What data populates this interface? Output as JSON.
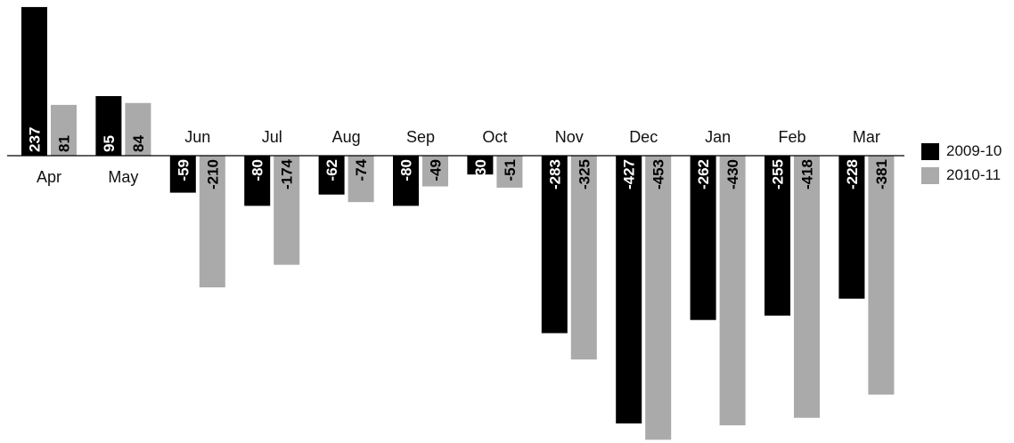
{
  "chart_data": {
    "type": "bar",
    "categories": [
      "Apr",
      "May",
      "Jun",
      "Jul",
      "Aug",
      "Sep",
      "Oct",
      "Nov",
      "Dec",
      "Jan",
      "Feb",
      "Mar"
    ],
    "series": [
      {
        "name": "2009-10",
        "color": "#000000",
        "label_color": "#ffffff",
        "values": [
          237,
          95,
          -59,
          -80,
          -62,
          -80,
          -30,
          -283,
          -427,
          -262,
          -255,
          -228
        ]
      },
      {
        "name": "2010-11",
        "color": "#aaaaaa",
        "label_color": "#000000",
        "values": [
          81,
          84,
          -210,
          -174,
          -74,
          -49,
          -51,
          -325,
          -453,
          -430,
          -418,
          -381
        ]
      }
    ],
    "title": "",
    "xlabel": "",
    "ylabel": "",
    "data_labels": true,
    "grid": false,
    "legend_position": "right"
  }
}
